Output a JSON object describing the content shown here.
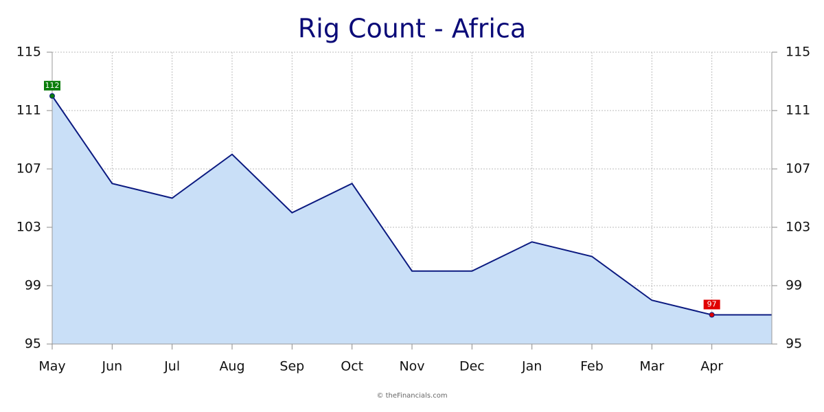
{
  "chart_data": {
    "type": "area",
    "title": "Rig Count - Africa",
    "categories": [
      "May",
      "Jun",
      "Jul",
      "Aug",
      "Sep",
      "Oct",
      "Nov",
      "Dec",
      "Jan",
      "Feb",
      "Mar",
      "Apr",
      null
    ],
    "values": [
      112,
      106,
      105,
      108,
      104,
      106,
      100,
      100,
      102,
      101,
      98,
      97,
      97
    ],
    "color": "#0b1a80",
    "fill": "#c9dff7",
    "max_color": "#0a7d0a",
    "min_color": "#e00000",
    "ylim": [
      95,
      115
    ],
    "yticks": [
      95,
      99,
      103,
      107,
      111,
      115
    ],
    "grid": true,
    "credit": "© theFinancials.com"
  }
}
